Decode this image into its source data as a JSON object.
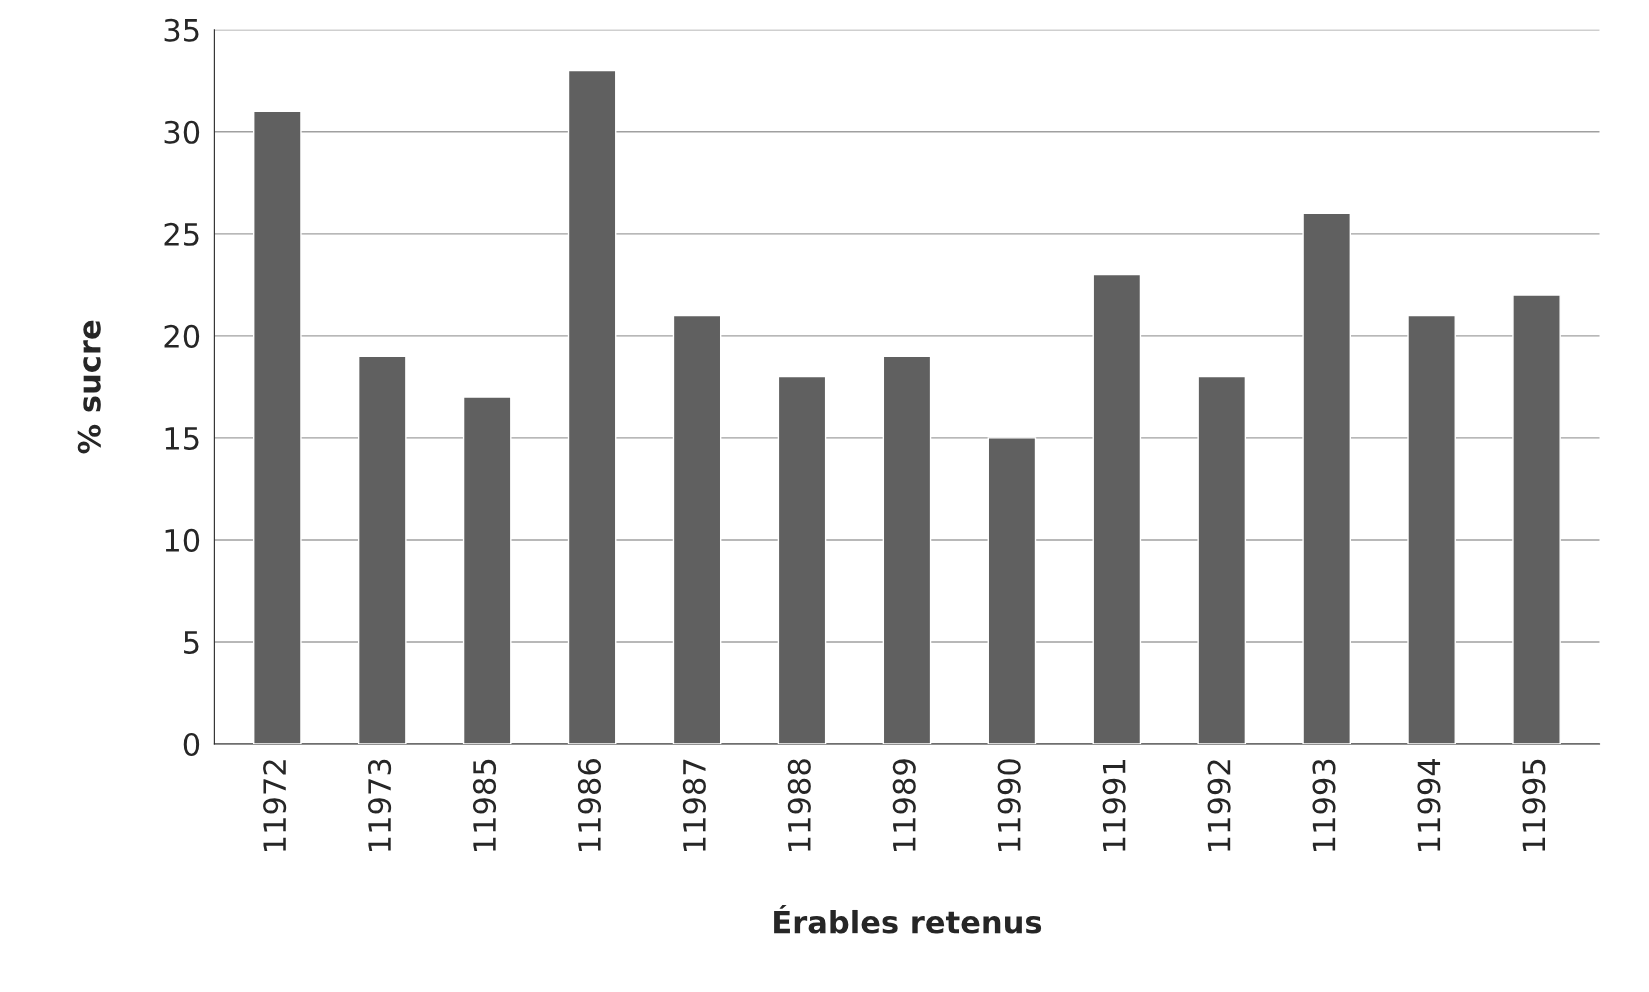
{
  "chart_data": {
    "type": "bar",
    "xlabel": "Érables retenus",
    "ylabel": "% sucre",
    "categories": [
      "11972",
      "11973",
      "11985",
      "11986",
      "11987",
      "11988",
      "11989",
      "11990",
      "11991",
      "11992",
      "11993",
      "11994",
      "11995"
    ],
    "values": [
      31,
      19,
      17,
      33,
      21,
      18,
      19,
      15,
      23,
      18,
      26,
      21,
      22
    ],
    "color": "#606060",
    "ylim": [
      0,
      35
    ],
    "yticks": [
      0,
      5,
      10,
      15,
      20,
      25,
      30,
      35
    ],
    "grid": "y"
  }
}
